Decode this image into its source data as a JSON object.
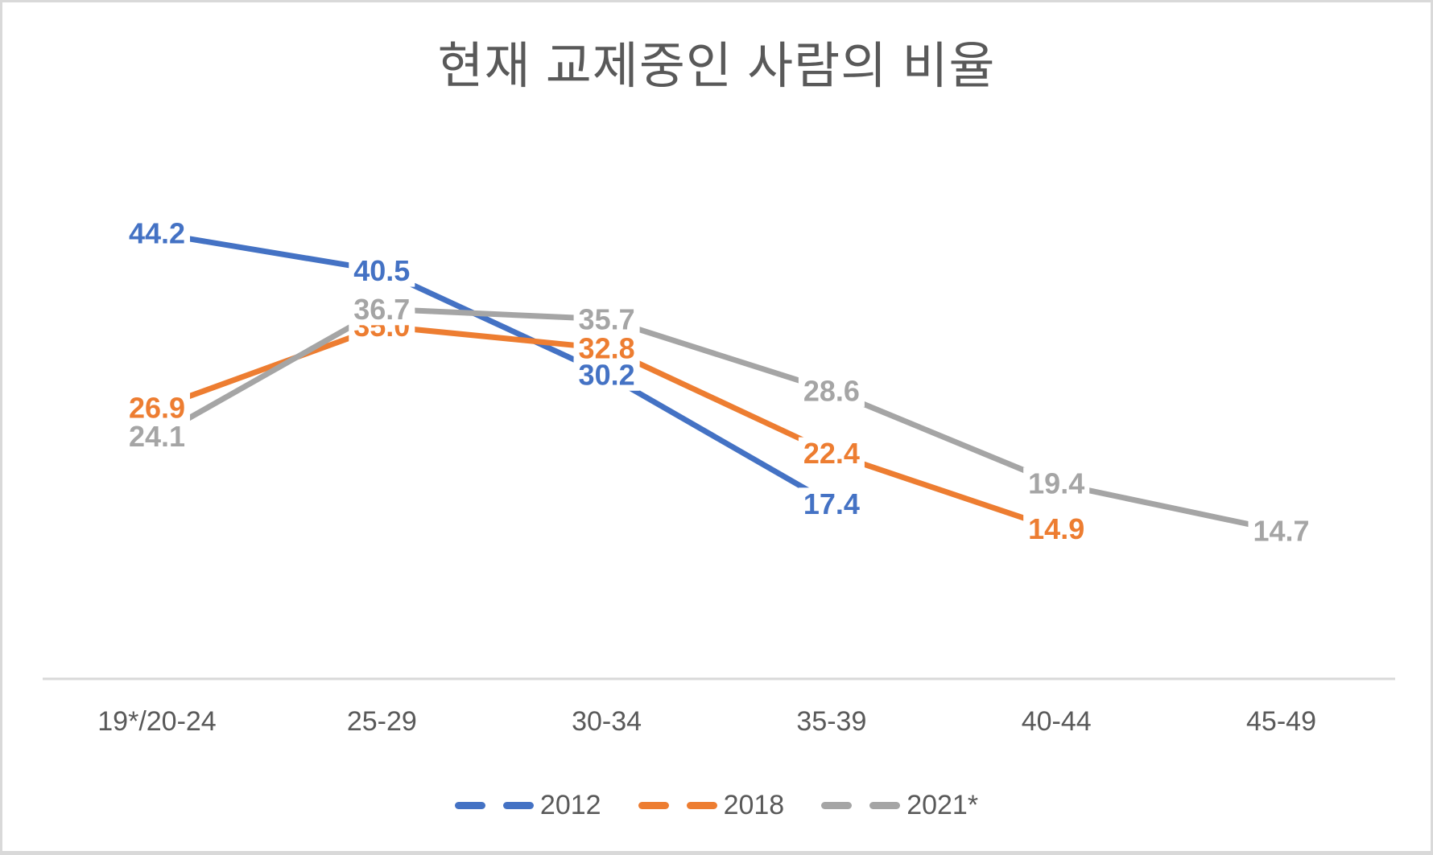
{
  "title": "현재 교제중인 사람의 비율",
  "colors": {
    "series_2012": "#4472C4",
    "series_2018": "#ED7D31",
    "series_2021": "#A5A5A5",
    "title_text": "#595959",
    "axis_text": "#595959",
    "axis_line": "#D9D9D9",
    "data_label_background": "#FFFFFF"
  },
  "legend": {
    "items": [
      {
        "label": "2012",
        "color": "#4472C4"
      },
      {
        "label": "2018",
        "color": "#ED7D31"
      },
      {
        "label": "2021*",
        "color": "#A5A5A5"
      }
    ]
  },
  "chart_data": {
    "type": "line",
    "title": "현재 교제중인 사람의 비율",
    "categories": [
      "19*/20-24",
      "25-29",
      "30-34",
      "35-39",
      "40-44",
      "45-49"
    ],
    "series": [
      {
        "name": "2012",
        "color": "#4472C4",
        "values": [
          44.2,
          40.5,
          30.2,
          17.4,
          null,
          null
        ]
      },
      {
        "name": "2018",
        "color": "#ED7D31",
        "values": [
          26.9,
          35.0,
          32.8,
          22.4,
          14.9,
          null
        ]
      },
      {
        "name": "2021*",
        "color": "#A5A5A5",
        "values": [
          24.1,
          36.7,
          35.7,
          28.6,
          19.4,
          14.7
        ]
      }
    ],
    "xlabel": "",
    "ylabel": "",
    "ylim": [
      0,
      47
    ],
    "grid": false,
    "y_axis_visible": false,
    "value_labels": true,
    "value_label_decimals": 1,
    "legend_position": "bottom"
  }
}
